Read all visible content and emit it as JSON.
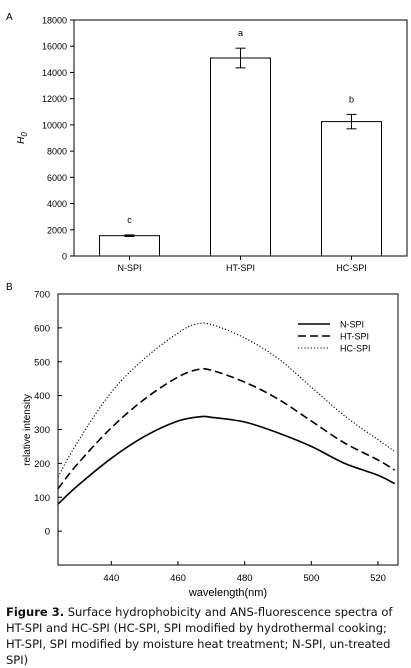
{
  "chart_data": [
    {
      "type": "bar",
      "panel_label": "A",
      "categories": [
        "N-SPI",
        "HT-SPI",
        "HC-SPI"
      ],
      "values": [
        1550,
        15100,
        10250
      ],
      "errors": [
        60,
        750,
        550
      ],
      "significance": [
        "c",
        "a",
        "b"
      ],
      "ylabel": "H0",
      "ylabel_main": "H",
      "ylabel_sub": "0",
      "ylim": [
        0,
        18000
      ],
      "yticks": [
        "0",
        "2000",
        "4000",
        "6000",
        "8000",
        "10000",
        "12000",
        "14000",
        "16000",
        "18000"
      ],
      "grid": false
    },
    {
      "type": "line",
      "panel_label": "B",
      "xlabel": "wavelength(nm)",
      "ylabel": "relative intensity",
      "xlim": [
        424,
        526
      ],
      "ylim": [
        -100,
        700
      ],
      "xticks": [
        "440",
        "460",
        "480",
        "500",
        "520"
      ],
      "yticks": [
        "0",
        "100",
        "200",
        "300",
        "400",
        "500",
        "600",
        "700"
      ],
      "legend_position": "top-right",
      "series": [
        {
          "name": "N-SPI",
          "style": "solid",
          "x": [
            424,
            430,
            440,
            450,
            460,
            467,
            470,
            480,
            490,
            500,
            510,
            520,
            525
          ],
          "y": [
            80,
            135,
            215,
            280,
            325,
            338,
            336,
            322,
            290,
            250,
            200,
            165,
            140
          ]
        },
        {
          "name": "HT-SPI",
          "style": "dashed",
          "x": [
            424,
            430,
            440,
            450,
            460,
            466,
            470,
            480,
            490,
            500,
            510,
            520,
            525
          ],
          "y": [
            125,
            200,
            305,
            390,
            455,
            477,
            475,
            440,
            390,
            325,
            260,
            210,
            180
          ]
        },
        {
          "name": "HC-SPI",
          "style": "dotted",
          "x": [
            424,
            430,
            440,
            450,
            460,
            465,
            470,
            480,
            490,
            500,
            510,
            520,
            525
          ],
          "y": [
            160,
            265,
            410,
            510,
            585,
            610,
            610,
            570,
            510,
            425,
            340,
            270,
            235
          ]
        }
      ]
    }
  ],
  "caption": {
    "label": "Figure 3.",
    "text": " Surface hydrophobicity and ANS-fluorescence spectra of HT-SPI and HC-SPI (HC-SPI, SPI modified by hydrothermal cooking; HT-SPI, SPI modified by moisture heat treatment; N-SPI, un-treated SPI)"
  }
}
